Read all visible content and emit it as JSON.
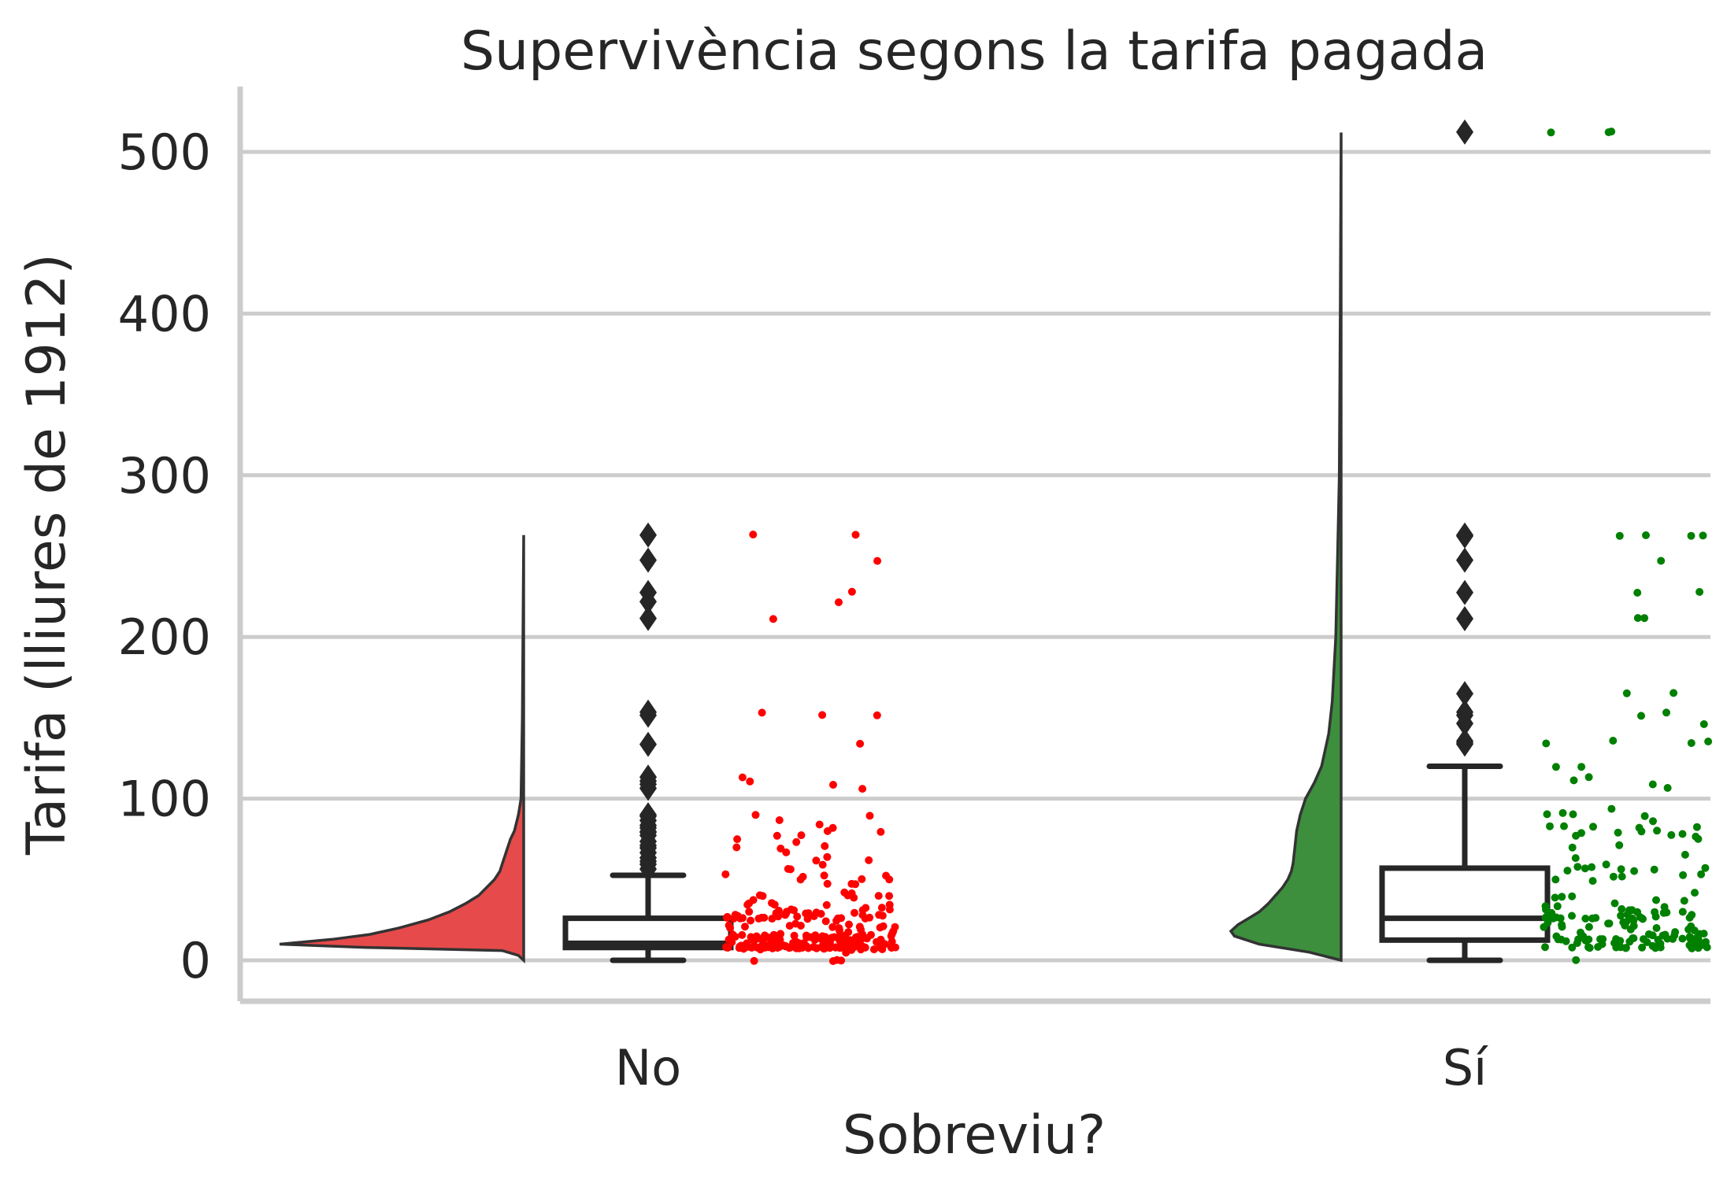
{
  "chart_data": {
    "type": "raincloud",
    "title": "Supervivència segons la tarifa pagada",
    "xlabel": "Sobreviu?",
    "ylabel": "Tarifa (lliures de 1912)",
    "categories": [
      "No",
      "Sí"
    ],
    "yticks": [
      0,
      100,
      200,
      300,
      400,
      500
    ],
    "ylim": [
      -25,
      540
    ],
    "grid": true,
    "colors": {
      "No": {
        "violin": "#e64a4a",
        "points": "#ff0000"
      },
      "Sí": {
        "violin": "#3d8f3d",
        "points": "#008000"
      }
    },
    "groups": [
      {
        "name": "No",
        "violin": [
          [
            0,
            0
          ],
          [
            3,
            2
          ],
          [
            6,
            8
          ],
          [
            8,
            60
          ],
          [
            10,
            92
          ],
          [
            13,
            72
          ],
          [
            16,
            58
          ],
          [
            20,
            47
          ],
          [
            25,
            36
          ],
          [
            30,
            28
          ],
          [
            35,
            22
          ],
          [
            40,
            17
          ],
          [
            45,
            14
          ],
          [
            50,
            11
          ],
          [
            55,
            9
          ],
          [
            60,
            8
          ],
          [
            65,
            7
          ],
          [
            70,
            6
          ],
          [
            75,
            5
          ],
          [
            80,
            3.5
          ],
          [
            90,
            2
          ],
          [
            100,
            1
          ],
          [
            150,
            0.5
          ],
          [
            263,
            0
          ]
        ],
        "box": {
          "q1": 7.9,
          "median": 10.5,
          "q3": 26,
          "whislo": 0,
          "whishi": 52.6
        },
        "fliers": [
          56.5,
          59.4,
          61.2,
          63.4,
          66.6,
          69.5,
          71,
          73.5,
          77.3,
          79.2,
          79.6,
          81.9,
          83.5,
          86.5,
          89.1,
          90,
          106.4,
          108.9,
          110.9,
          113.3,
          133.6,
          151.6,
          153.5,
          211.5,
          221.8,
          227.5,
          247.5,
          263
        ],
        "points": [
          0,
          0,
          0,
          0,
          5,
          6.2,
          6.4,
          6.9,
          7,
          7.1,
          7.1,
          7.1,
          7.2,
          7.2,
          7.5,
          7.5,
          7.6,
          7.7,
          7.7,
          7.8,
          7.8,
          7.8,
          7.8,
          7.8,
          7.8,
          7.8,
          7.8,
          7.8,
          7.9,
          7.9,
          7.9,
          7.9,
          7.9,
          7.9,
          7.9,
          7.9,
          7.9,
          7.9,
          7.9,
          8,
          8,
          8,
          8,
          8,
          8,
          8,
          8,
          8,
          8,
          8,
          8,
          8,
          8.1,
          8.1,
          8.1,
          8.1,
          8.1,
          8.1,
          8.1,
          8.1,
          8.1,
          8.1,
          8.1,
          8.1,
          8.4,
          8.5,
          8.5,
          8.5,
          8.5,
          8.5,
          8.5,
          8.5,
          8.5,
          8.5,
          8.6,
          8.7,
          8.7,
          8.7,
          8.7,
          8.7,
          8.7,
          9,
          9,
          9,
          9,
          9.2,
          9.3,
          9.3,
          9.5,
          9.5,
          9.5,
          9.6,
          9.8,
          9.8,
          10.2,
          10.5,
          10.5,
          10.5,
          10.5,
          10.5,
          10.5,
          10.5,
          10.5,
          10.5,
          11.1,
          11.1,
          11.1,
          11.2,
          11.2,
          11.5,
          12.3,
          12.5,
          12.9,
          13,
          13,
          13,
          13,
          13,
          13,
          13,
          13,
          13,
          13,
          13,
          13,
          13,
          13,
          13.4,
          13.5,
          13.8,
          13.9,
          14,
          14,
          14.1,
          14.4,
          14.4,
          14.4,
          14.5,
          14.5,
          14.5,
          14.5,
          14.5,
          14.5,
          14.5,
          14.5,
          14.5,
          15,
          15.1,
          15.1,
          15.2,
          15.2,
          15.5,
          15.5,
          15.5,
          15.5,
          15.5,
          15.7,
          15.9,
          16.1,
          16.1,
          16.7,
          17.8,
          18,
          18,
          18.8,
          19.9,
          20.2,
          20.2,
          20.5,
          20.5,
          21,
          21,
          21,
          21,
          21.1,
          21.7,
          22,
          23,
          24.2,
          24.2,
          24.2,
          25.5,
          25.5,
          25.6,
          26,
          26,
          26,
          26,
          26,
          26,
          26,
          26,
          26.3,
          26.6,
          26.6,
          27,
          27,
          27,
          27.7,
          27.7,
          27.7,
          27.9,
          27.9,
          28.5,
          28.7,
          29.1,
          29.1,
          29.1,
          29.1,
          29.1,
          29.7,
          30,
          30.1,
          30.7,
          31,
          31.3,
          31.4,
          31.4,
          32.5,
          33,
          34,
          34.4,
          34.4,
          34.7,
          35,
          35.5,
          36.8,
          38.5,
          39.6,
          39.7,
          39.7,
          40.1,
          40.1,
          41.6,
          42.4,
          46.9,
          46.9,
          47.1,
          49.5,
          50,
          50.5,
          51.9,
          52,
          52,
          53.1,
          55.9,
          56.5,
          59.4,
          61.2,
          61.4,
          63.4,
          66.6,
          69.5,
          69.6,
          71,
          73.5,
          75.2,
          77.3,
          77.3,
          79.2,
          79.6,
          81.9,
          83.5,
          86.5,
          89.1,
          90,
          106.4,
          108.9,
          110.9,
          113.3,
          133.6,
          151.6,
          151.6,
          153.5,
          211.5,
          221.8,
          227.5,
          247.5,
          263,
          263
        ]
      },
      {
        "name": "Sí",
        "violin": [
          [
            0,
            0
          ],
          [
            5,
            18
          ],
          [
            10,
            46
          ],
          [
            15,
            60
          ],
          [
            18,
            62
          ],
          [
            22,
            58
          ],
          [
            26,
            52
          ],
          [
            30,
            46
          ],
          [
            35,
            41
          ],
          [
            40,
            37
          ],
          [
            45,
            33
          ],
          [
            50,
            30
          ],
          [
            55,
            28
          ],
          [
            60,
            27
          ],
          [
            70,
            26
          ],
          [
            80,
            25
          ],
          [
            90,
            23
          ],
          [
            100,
            20
          ],
          [
            110,
            15
          ],
          [
            120,
            11
          ],
          [
            140,
            7
          ],
          [
            160,
            5
          ],
          [
            200,
            3
          ],
          [
            250,
            2
          ],
          [
            300,
            1
          ],
          [
            400,
            0.5
          ],
          [
            512,
            0
          ]
        ],
        "box": {
          "q1": 12.5,
          "median": 26,
          "q3": 57,
          "whislo": 0,
          "whishi": 120
        },
        "fliers": [
          133.7,
          134.5,
          135.6,
          146.5,
          151.6,
          153.5,
          164.9,
          211.3,
          227.5,
          247.5,
          262.4,
          263,
          512.3
        ],
        "points": [
          0,
          7.2,
          7.7,
          7.8,
          7.8,
          7.9,
          7.9,
          7.9,
          7.9,
          7.9,
          8,
          8,
          8,
          8.1,
          8.1,
          8.1,
          8.5,
          8.7,
          9.2,
          9.2,
          9.5,
          9.8,
          9.8,
          10.5,
          10.5,
          11.1,
          11.1,
          11.1,
          11.1,
          11.2,
          11.5,
          12,
          12,
          12.3,
          12.5,
          12.9,
          13,
          13,
          13,
          13,
          13,
          13,
          13,
          13,
          13,
          13,
          13,
          13,
          13,
          13.4,
          13.8,
          13.9,
          14.1,
          14.4,
          14.5,
          14.5,
          15.2,
          15.2,
          15.2,
          15.9,
          16,
          16.1,
          16.7,
          16.7,
          17.4,
          18.8,
          19.3,
          19.5,
          20.2,
          20.5,
          20.5,
          21,
          21,
          21,
          21,
          22,
          22.4,
          23,
          23,
          23.3,
          24,
          24.2,
          25.9,
          26,
          26,
          26,
          26,
          26,
          26,
          26,
          26,
          26.3,
          26.3,
          26.3,
          26.6,
          27,
          27.7,
          27.7,
          27.7,
          27.9,
          28.7,
          29,
          29.1,
          29.7,
          30,
          30,
          30,
          30.5,
          30.7,
          31,
          31.4,
          32.5,
          33,
          33.5,
          35.5,
          36.8,
          37,
          39,
          39.4,
          39.6,
          41.6,
          49.5,
          49.5,
          51.5,
          51.9,
          52.6,
          53.1,
          55,
          55.4,
          55.9,
          56.5,
          56.9,
          57,
          57.9,
          57.9,
          59.4,
          63.4,
          65,
          69.3,
          71,
          75.3,
          76.3,
          76.7,
          77.9,
          78.3,
          78.9,
          79.2,
          79.7,
          80,
          81.9,
          82.2,
          82.3,
          83.2,
          83.2,
          86.5,
          89.1,
          90,
          90,
          91.1,
          93.5,
          106.4,
          108.9,
          110.9,
          113.3,
          120,
          120,
          133.7,
          134.5,
          135.6,
          135.6,
          146.5,
          151.6,
          153.5,
          164.9,
          164.9,
          211.3,
          211.5,
          227.5,
          227.5,
          247.5,
          262.4,
          262.4,
          263,
          263,
          512.3,
          512.3,
          512.3
        ]
      }
    ]
  }
}
